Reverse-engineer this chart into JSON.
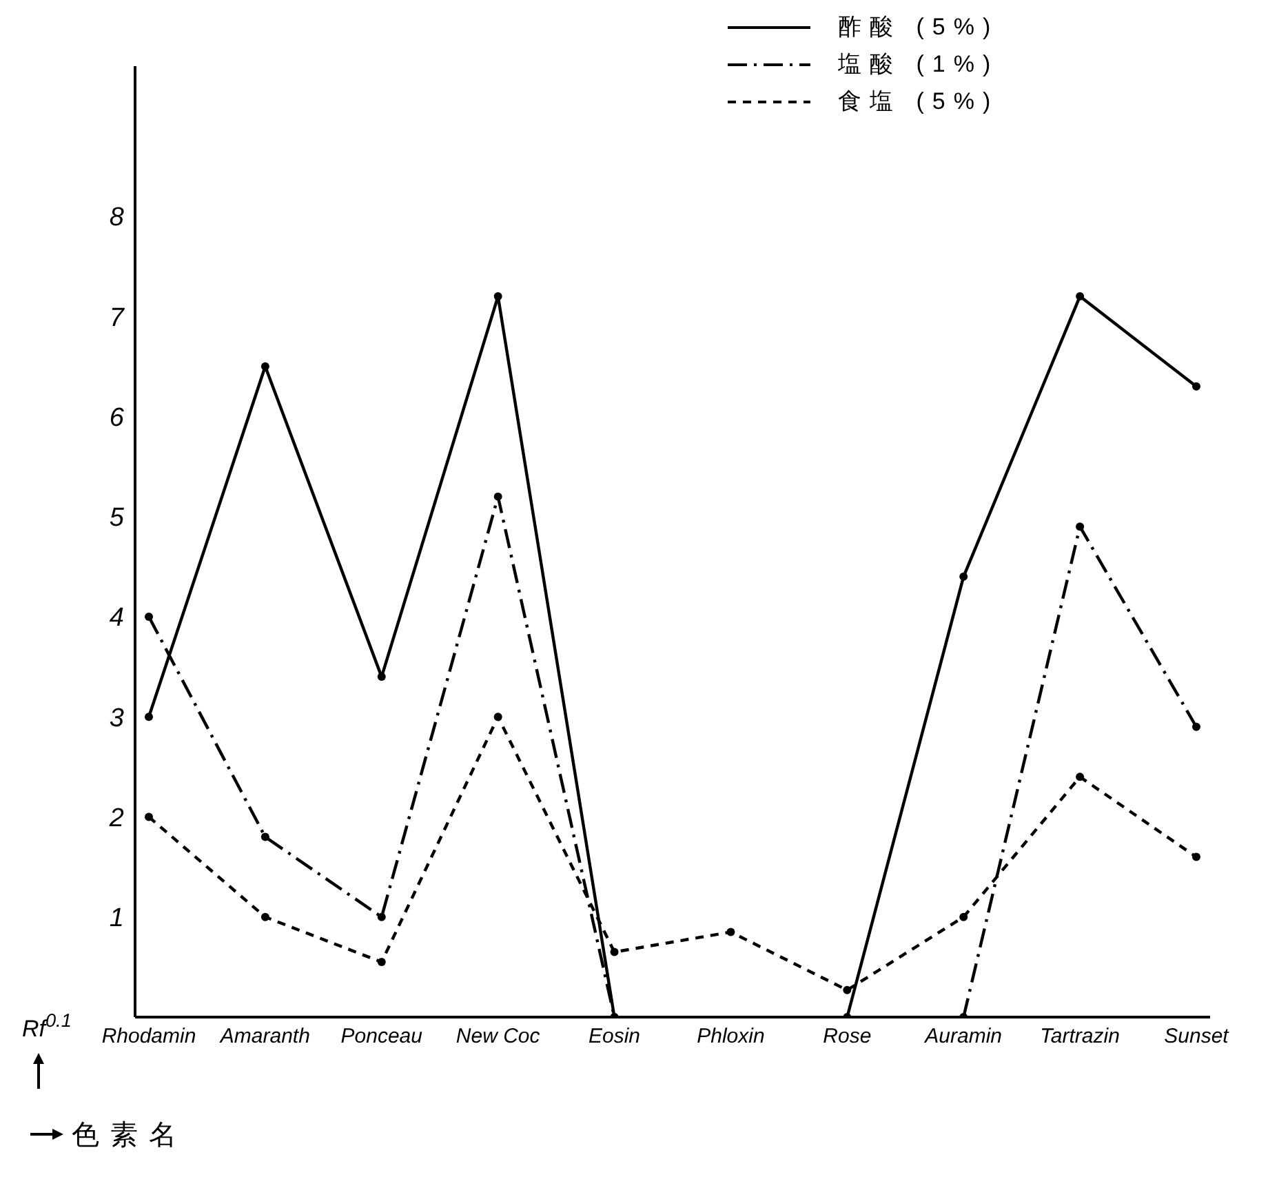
{
  "chart_data": {
    "type": "line",
    "xlabel": "色素名",
    "ylabel": "Rf$^{0.1}$",
    "categories": [
      "Rhodamin",
      "Amaranth",
      "Ponceau",
      "New Coc",
      "Eosin",
      "Phloxin",
      "Rose",
      "Auramin",
      "Tartrazin",
      "Sunset"
    ],
    "series": [
      {
        "name": "酢酸 (5%)",
        "color": "#000000",
        "line_style": "solid",
        "values": [
          3.0,
          6.5,
          3.4,
          7.2,
          0,
          null,
          0,
          4.4,
          7.2,
          6.3
        ]
      },
      {
        "name": "塩酸 (1%)",
        "color": "#000000",
        "line_style": "dashdot",
        "values": [
          4.0,
          1.8,
          1.0,
          5.2,
          0,
          null,
          null,
          0,
          4.9,
          2.9
        ]
      },
      {
        "name": "食塩 (5%)",
        "color": "#000000",
        "line_style": "dashed",
        "values": [
          2.0,
          1.0,
          0.55,
          3.0,
          0.65,
          0.85,
          0.27,
          1.0,
          2.4,
          1.6
        ]
      }
    ],
    "ylim": [
      0,
      9.5
    ],
    "yticks": [
      1,
      2,
      3,
      4,
      5,
      6,
      7,
      8
    ],
    "grid": false,
    "legend": "top right",
    "marker": "circle"
  }
}
